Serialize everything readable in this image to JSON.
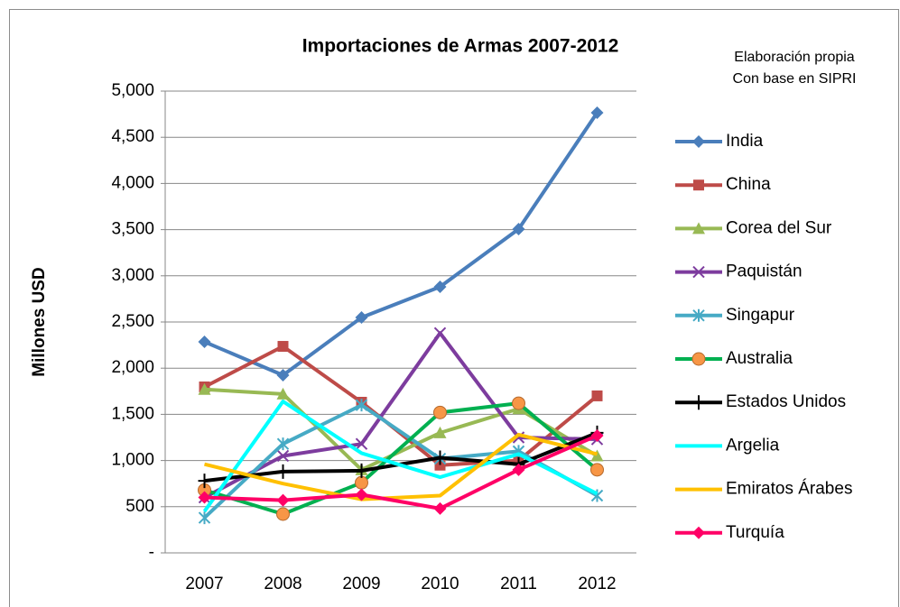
{
  "chart_data": {
    "type": "line",
    "title": "Importaciones de Armas 2007-2012",
    "annotations": [
      "Elaboración propia",
      "Con base en  SIPRI"
    ],
    "y_label": "Millones USD",
    "categories": [
      "2007",
      "2008",
      "2009",
      "2010",
      "2011",
      "2012"
    ],
    "ylim": [
      0,
      5000
    ],
    "yticks": [
      {
        "value": 0,
        "label": "-"
      },
      500,
      {
        "value": 1000,
        "label": "1,000"
      },
      {
        "value": 1500,
        "label": "1,500"
      },
      {
        "value": 2000,
        "label": "2,000"
      },
      {
        "value": 2500,
        "label": "2,500"
      },
      {
        "value": 3000,
        "label": "3,000"
      },
      {
        "value": 3500,
        "label": "3,500"
      },
      {
        "value": 4000,
        "label": "4,000"
      },
      {
        "value": 4500,
        "label": "4,500"
      },
      {
        "value": 5000,
        "label": "5,000"
      }
    ],
    "grid": true,
    "legend": "right",
    "series": [
      {
        "name": "India",
        "color": "#4a7ebb",
        "marker": "diamond",
        "marker_color": "#4a7ebb",
        "values": [
          2285,
          1924,
          2549,
          2881,
          3506,
          4766
        ]
      },
      {
        "name": "China",
        "color": "#be4b48",
        "marker": "square",
        "marker_color": "#be4b48",
        "values": [
          1797,
          2236,
          1631,
          950,
          1000,
          1700
        ]
      },
      {
        "name": "Corea del Sur",
        "color": "#98b954",
        "marker": "triangle",
        "marker_color": "#98b954",
        "values": [
          1770,
          1720,
          900,
          1300,
          1560,
          1050
        ]
      },
      {
        "name": "Paquistán",
        "color": "#7d3c9e",
        "marker": "x",
        "marker_color": "#7d3c9e",
        "values": [
          600,
          1050,
          1180,
          2380,
          1250,
          1230
        ]
      },
      {
        "name": "Singapur",
        "color": "#46aac5",
        "marker": "asterisk",
        "marker_color": "#46aac5",
        "values": [
          380,
          1180,
          1600,
          1020,
          1100,
          620
        ]
      },
      {
        "name": "Australia",
        "color": "#00b050",
        "marker": "circle",
        "marker_color": "#f79646",
        "values": [
          680,
          420,
          760,
          1520,
          1620,
          900
        ]
      },
      {
        "name": "Estados Unidos",
        "color": "#000000",
        "marker": "plus",
        "marker_color": "#000000",
        "values": [
          780,
          880,
          890,
          1030,
          960,
          1300
        ]
      },
      {
        "name": "Argelia",
        "color": "#00ffff",
        "marker": "none",
        "marker_color": "#00ffff",
        "values": [
          450,
          1640,
          1080,
          820,
          1070,
          640
        ]
      },
      {
        "name": "Emiratos Árabes",
        "color": "#ffc000",
        "marker": "none",
        "marker_color": "#ffc000",
        "values": [
          960,
          750,
          580,
          620,
          1280,
          1070
        ]
      },
      {
        "name": "Turquía",
        "color": "#ff0066",
        "marker": "diamond",
        "marker_color": "#ff0066",
        "values": [
          600,
          570,
          630,
          480,
          900,
          1270
        ]
      }
    ]
  }
}
